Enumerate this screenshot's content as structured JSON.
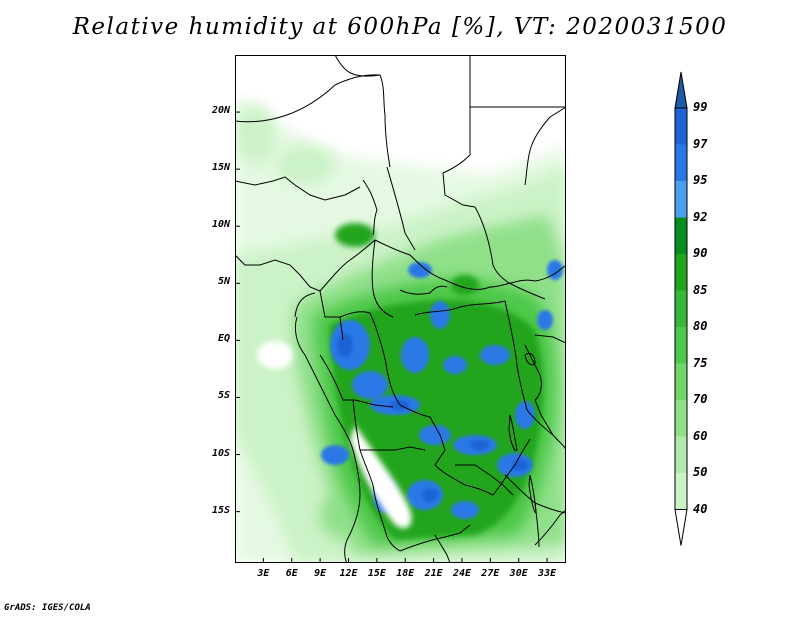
{
  "title": "Relative humidity at 600hPa [%], VT: 2020031500",
  "credit": "GrADS: IGES/COLA",
  "map": {
    "lat_labels": [
      "20N",
      "15N",
      "10N",
      "5N",
      "EQ",
      "5S",
      "10S",
      "15S"
    ],
    "lat_values": [
      20,
      15,
      10,
      5,
      0,
      -5,
      -10,
      -15
    ],
    "lon_labels": [
      "3E",
      "6E",
      "9E",
      "12E",
      "15E",
      "18E",
      "21E",
      "24E",
      "27E",
      "30E",
      "33E"
    ],
    "lon_values": [
      3,
      6,
      9,
      12,
      15,
      18,
      21,
      24,
      27,
      30,
      33
    ],
    "lat_range": [
      -19.5,
      25
    ],
    "lon_range": [
      0,
      35
    ]
  },
  "colorbar": {
    "levels": [
      "99",
      "97",
      "95",
      "92",
      "90",
      "85",
      "80",
      "75",
      "70",
      "60",
      "50",
      "40"
    ],
    "colors": [
      "#1e64d6",
      "#2a78e6",
      "#4d9ef0",
      "#078c20",
      "#22a51e",
      "#37b836",
      "#4ec84a",
      "#6fd66a",
      "#90e08a",
      "#b0eaaa",
      "#ccf2c7",
      "#e5f9e2",
      "#ffffff"
    ],
    "top_arrow_color": "#1e5aa8"
  }
}
